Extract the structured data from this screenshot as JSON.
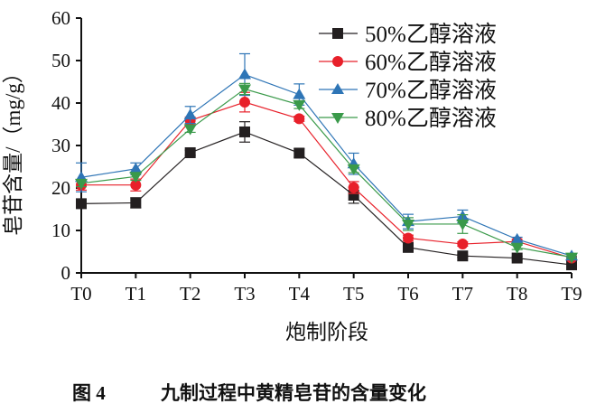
{
  "chart_data": {
    "type": "line",
    "title": "",
    "caption_num": "图 4",
    "caption": "九制过程中黄精皂苷的含量变化",
    "xlabel": "炮制阶段",
    "ylabel": "皂苷含量/（mg/g）",
    "categories": [
      "T0",
      "T1",
      "T2",
      "T3",
      "T4",
      "T5",
      "T6",
      "T7",
      "T8",
      "T9"
    ],
    "ylim": [
      0,
      60
    ],
    "yticks": [
      0,
      10,
      20,
      30,
      40,
      50,
      60
    ],
    "grid": false,
    "legend_position": "top-right",
    "series": [
      {
        "name": "50%乙醇溶液",
        "color": "#231f20",
        "marker": "square",
        "values": [
          16.3,
          16.5,
          28.3,
          33.2,
          28.2,
          18.3,
          6.0,
          4.0,
          3.5,
          1.9
        ],
        "errors": [
          0.8,
          1.2,
          0.6,
          2.4,
          1.0,
          1.9,
          0.6,
          0.3,
          0.4,
          0.3
        ]
      },
      {
        "name": "60%乙醇溶液",
        "color": "#e8202a",
        "marker": "circle",
        "values": [
          20.7,
          20.7,
          35.9,
          40.2,
          36.3,
          20.1,
          8.2,
          6.8,
          7.4,
          3.5
        ],
        "errors": [
          1.2,
          1.4,
          0.8,
          2.3,
          0.6,
          1.4,
          0.7,
          0.5,
          0.5,
          0.3
        ]
      },
      {
        "name": "70%乙醇溶液",
        "color": "#2e75b6",
        "marker": "triangle-up",
        "values": [
          22.5,
          24.5,
          37.2,
          46.7,
          42.0,
          25.7,
          12.1,
          13.3,
          7.9,
          4.0
        ],
        "errors": [
          3.4,
          1.4,
          2.0,
          4.9,
          2.5,
          2.5,
          1.7,
          1.5,
          0.5,
          0.4
        ]
      },
      {
        "name": "80%乙醇溶液",
        "color": "#3a9a4a",
        "marker": "triangle-down",
        "values": [
          21.1,
          22.7,
          33.9,
          43.3,
          39.6,
          24.5,
          11.5,
          11.5,
          6.0,
          3.7
        ],
        "errors": [
          0.8,
          0.9,
          0.8,
          1.3,
          0.9,
          0.9,
          1.5,
          2.2,
          0.5,
          0.3
        ]
      }
    ]
  }
}
